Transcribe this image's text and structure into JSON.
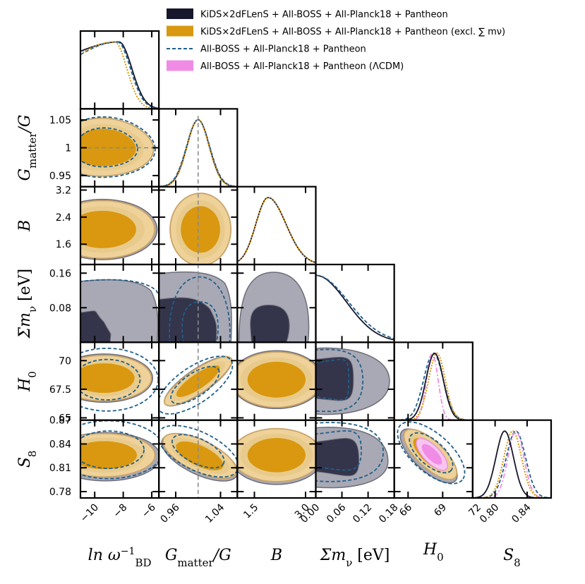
{
  "colors": {
    "dark": "#17172b",
    "dark_fill_inner": "#34344a",
    "dark_fill_outer": "#a9a9b5",
    "dark_edge": "#6d6d7a",
    "orange": "#d9980f",
    "orange_inner": "#d9980f",
    "orange_outer": "#eed29a",
    "orange_edge": "#c9a46a",
    "blue_dash": "#1f5f8b",
    "pink": "#f08ce6",
    "pink_edge": "#e98de1",
    "ref_line": "#8a8a8a"
  },
  "legend": {
    "entries": [
      {
        "label": "KiDS×2dFLenS + All-BOSS + All-Planck18 + Pantheon",
        "style": "dark"
      },
      {
        "label": "KiDS×2dFLenS + All-BOSS + All-Planck18 + Pantheon (excl. ∑ mν)",
        "style": "orange"
      },
      {
        "label": "All-BOSS + All-Planck18 + Pantheon",
        "style": "blue"
      },
      {
        "label": "All-BOSS + All-Planck18 + Pantheon (ΛCDM)",
        "style": "pink"
      }
    ]
  },
  "chart_data": {
    "type": "triangle-corner-plot",
    "parameters": [
      {
        "key": "lnw",
        "label": "ln ω_BD^-1",
        "range": [
          -11,
          -5.5
        ],
        "ticks": [
          -10,
          -8,
          -6
        ],
        "tick_labels": [
          "−10",
          "−8",
          "−6"
        ]
      },
      {
        "key": "G",
        "label": "G_matter/G",
        "range": [
          0.93,
          1.07
        ],
        "ticks": [
          0.96,
          1.04
        ],
        "tick_labels": [
          "0.96",
          "1.04"
        ],
        "y_ticks": [
          0.95,
          1,
          1.05
        ],
        "y_tick_labels": [
          "0.95",
          "1",
          "1.05"
        ]
      },
      {
        "key": "B",
        "label": "B",
        "range": [
          1.0,
          3.3
        ],
        "ticks": [
          1.5,
          3.0
        ],
        "tick_labels": [
          "1.5",
          "3.0"
        ],
        "y_ticks": [
          1.6,
          2.4,
          3.2
        ],
        "y_tick_labels": [
          "1.6",
          "2.4",
          "3.2"
        ]
      },
      {
        "key": "mnu",
        "label": "Σm_ν [eV]",
        "range": [
          0,
          0.18
        ],
        "ticks": [
          0.0,
          0.06,
          0.12,
          0.18
        ],
        "tick_labels": [
          "0.00",
          "0.06",
          "0.12",
          "0.18"
        ],
        "y_ticks": [
          0.08,
          0.16
        ],
        "y_tick_labels": [
          "0.08",
          "0.16"
        ]
      },
      {
        "key": "H0",
        "label": "H_0",
        "range": [
          64.8,
          71.6
        ],
        "ticks": [
          66,
          69,
          72
        ],
        "tick_labels": [
          "66",
          "69",
          "72"
        ],
        "y_ticks": [
          65,
          67.5,
          70
        ],
        "y_tick_labels": [
          "65",
          "67.5",
          "70"
        ]
      },
      {
        "key": "S8",
        "label": "S_8",
        "range": [
          0.772,
          0.87
        ],
        "ticks": [
          0.8,
          0.84
        ],
        "tick_labels": [
          "0.80",
          "0.84"
        ],
        "y_ticks": [
          0.78,
          0.81,
          0.84,
          0.87
        ],
        "y_tick_labels": [
          "0.78",
          "0.81",
          "0.84",
          "0.87"
        ]
      }
    ],
    "axis_labels": {
      "lnw": "ln ω",
      "lnw_sup": "−1",
      "lnw_sub": "BD",
      "G": "G",
      "G_sub": "matter",
      "G_tail": "/G",
      "B": "B",
      "mnu": "Σm",
      "mnu_sub": "ν",
      "mnu_tail": " [eV]",
      "H0": "H",
      "H0_sub": "0",
      "S8": "S",
      "S8_sub": "8"
    },
    "reference_line": {
      "parameter": "G",
      "value": 1.0
    },
    "marginals": {
      "lnw": {
        "dark": {
          "peak": -8.3,
          "sigma_left": 2.2,
          "sigma_right": 0.9,
          "plateau": true
        },
        "orange": {
          "peak": -8.6,
          "sigma_left": 2.2,
          "sigma_right": 0.85
        },
        "blue": {
          "peak": -8.4,
          "sigma_left": 2.2,
          "sigma_right": 0.9
        }
      },
      "G": {
        "mean": 1.0,
        "sigma": 0.02
      },
      "B": {
        "mean": 1.9,
        "sigma": 0.42
      },
      "mnu": {
        "dark": {
          "upper_scale": 0.07
        },
        "blue": {
          "upper_scale": 0.075
        }
      },
      "H0": {
        "dark": {
          "mean": 68.3,
          "sigma": 0.75
        },
        "orange": {
          "mean": 68.5,
          "sigma": 0.72
        },
        "blue": {
          "mean": 68.2,
          "sigma": 0.85
        },
        "pink": {
          "mean": 68.1,
          "sigma": 0.5
        }
      },
      "S8": {
        "dark": {
          "mean": 0.812,
          "sigma": 0.011
        },
        "orange": {
          "mean": 0.822,
          "sigma": 0.011
        },
        "blue": {
          "mean": 0.826,
          "sigma": 0.012
        },
        "pink": {
          "mean": 0.826,
          "sigma": 0.01
        }
      }
    }
  }
}
